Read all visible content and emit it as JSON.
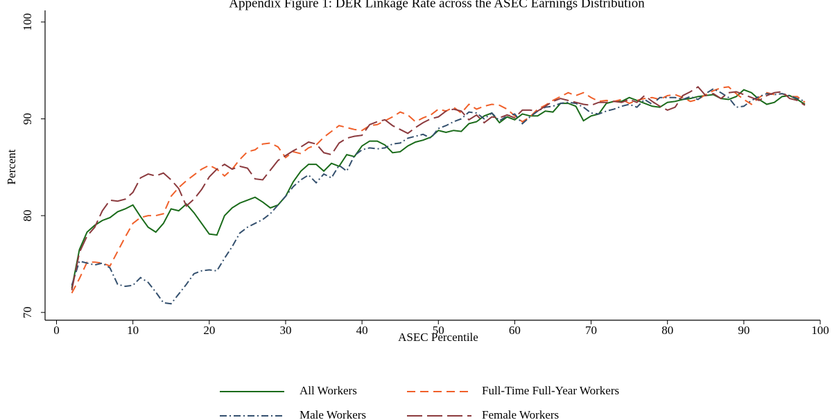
{
  "chart_data": {
    "type": "line",
    "title": "Appendix Figure 1: DER Linkage Rate across the ASEC Earnings Distribution",
    "x_label": "ASEC Percentile",
    "y_label": "Percent",
    "xlim": [
      -1.5,
      100
    ],
    "xticks": [
      0,
      10,
      20,
      30,
      40,
      50,
      60,
      70,
      80,
      90,
      100
    ],
    "ylim": [
      69.2,
      101.2
    ],
    "yticks": [
      70,
      80,
      90,
      100
    ],
    "legend": "bottom",
    "x": [
      2,
      3,
      4,
      5,
      6,
      7,
      8,
      9,
      10,
      11,
      12,
      13,
      14,
      15,
      16,
      17,
      18,
      19,
      20,
      21,
      22,
      23,
      24,
      25,
      26,
      27,
      28,
      29,
      30,
      31,
      32,
      33,
      34,
      35,
      36,
      37,
      38,
      39,
      40,
      41,
      42,
      43,
      44,
      45,
      46,
      47,
      48,
      49,
      50,
      51,
      52,
      53,
      54,
      55,
      56,
      57,
      58,
      59,
      60,
      61,
      62,
      63,
      64,
      65,
      66,
      67,
      68,
      69,
      70,
      71,
      72,
      73,
      74,
      75,
      76,
      77,
      78,
      79,
      80,
      81,
      82,
      83,
      84,
      85,
      86,
      87,
      88,
      89,
      90,
      91,
      92,
      93,
      94,
      95,
      96,
      97,
      98
    ],
    "series": [
      {
        "name": "All Workers",
        "color": "#1a6b1a",
        "dash": "none",
        "values": [
          72.5,
          76.5,
          78.3,
          79,
          79.5,
          79.8,
          80.4,
          80.7,
          81.1,
          79.9,
          78.8,
          78.3,
          79.2,
          80.7,
          80.5,
          81.2,
          80.3,
          79.2,
          78.1,
          78,
          80,
          80.8,
          81.3,
          81.6,
          81.9,
          81.4,
          80.8,
          81.1,
          82,
          83.5,
          84.6,
          85.3,
          85.3,
          84.6,
          85.4,
          85.1,
          86.3,
          86.1,
          87.2,
          87.7,
          87.7,
          87.3,
          86.5,
          86.6,
          87.2,
          87.6,
          87.8,
          88.1,
          88.8,
          88.6,
          88.8,
          88.7,
          89.5,
          89.7,
          90.3,
          90.6,
          89.6,
          90.2,
          89.9,
          90.5,
          90.3,
          90.3,
          90.8,
          90.7,
          91.6,
          91.6,
          91.3,
          89.8,
          90.3,
          90.5,
          91.6,
          91.8,
          91.8,
          92.2,
          91.9,
          91.6,
          91.3,
          91.2,
          91.7,
          91.8,
          92,
          92.1,
          92.3,
          92.4,
          92.5,
          92.1,
          92,
          92.3,
          93,
          92.7,
          92,
          91.5,
          91.7,
          92.3,
          92.4,
          92,
          91.5
        ]
      },
      {
        "name": "Full-Time Full-Year Workers",
        "color": "#f0602a",
        "dash": "12 7",
        "values": [
          72,
          73.5,
          75.2,
          75.2,
          75.1,
          74.8,
          76.3,
          77.8,
          79.2,
          79.8,
          80,
          80,
          80.2,
          82,
          82.9,
          83.6,
          84.2,
          84.8,
          85.2,
          84.8,
          84.1,
          84.8,
          85.8,
          86.6,
          86.8,
          87.4,
          87.5,
          87.1,
          86,
          86.6,
          86.4,
          87,
          87.3,
          88.1,
          88.7,
          89.3,
          89.1,
          88.9,
          88.8,
          89.3,
          89.4,
          89.8,
          90.2,
          90.7,
          90.4,
          89.7,
          90.1,
          90.4,
          91,
          90.8,
          91.2,
          90.6,
          91.5,
          91,
          91.3,
          91.5,
          91.4,
          91,
          90.3,
          89.7,
          90.2,
          91,
          91.4,
          91.9,
          92.3,
          92.7,
          92.4,
          92.7,
          92.2,
          91.8,
          91.9,
          91.8,
          92,
          91.6,
          91.9,
          92.1,
          92.2,
          92,
          92.4,
          92.5,
          92.2,
          91.8,
          92,
          92.5,
          92.9,
          93.2,
          93.3,
          92.6,
          92,
          91.5,
          92.2,
          92.7,
          92.5,
          92.6,
          92.3,
          92.3,
          91.7
        ]
      },
      {
        "name": "Male Workers",
        "color": "#34506e",
        "dash": "10 4 2 4",
        "values": [
          72.8,
          75.3,
          75.1,
          74.9,
          75.1,
          74.6,
          72.9,
          72.7,
          72.8,
          73.6,
          73.1,
          72.1,
          71,
          70.9,
          71.9,
          72.9,
          74,
          74.3,
          74.4,
          74.3,
          75.6,
          76.8,
          78.2,
          78.8,
          79.2,
          79.6,
          80.2,
          81.1,
          82,
          83,
          83.7,
          84.2,
          83.4,
          84.3,
          83.9,
          85.2,
          84.6,
          86.2,
          86.8,
          87,
          86.9,
          87,
          87.4,
          87.5,
          88,
          88.2,
          88.4,
          88,
          89,
          89.3,
          89.7,
          90,
          90.7,
          90.6,
          90,
          90.6,
          89.8,
          90.3,
          90.5,
          89.5,
          90.2,
          90.8,
          91.2,
          91.3,
          91.6,
          91.7,
          91.6,
          91.2,
          90.6,
          90.5,
          90.8,
          91,
          91.3,
          91.5,
          91.2,
          92,
          91.5,
          92.2,
          92.2,
          92.2,
          92,
          92.3,
          92,
          92.6,
          93.1,
          92.7,
          92.2,
          91.2,
          91.3,
          91.9,
          92.3,
          92.6,
          92.5,
          92.6,
          92.4,
          92.1,
          91.8
        ]
      },
      {
        "name": "Female Workers",
        "color": "#8b3a3e",
        "dash": "22 7",
        "values": [
          72.3,
          76.2,
          77.9,
          78.8,
          80.5,
          81.6,
          81.5,
          81.7,
          82.4,
          83.9,
          84.3,
          84.1,
          84.4,
          83.7,
          82.8,
          81,
          81.7,
          82.7,
          84,
          84.8,
          85.3,
          84.8,
          85.1,
          84.9,
          83.8,
          83.7,
          84.7,
          85.7,
          86.2,
          86.7,
          87.1,
          87.6,
          87.4,
          86.5,
          86.3,
          87.5,
          88,
          88.2,
          88.3,
          89.4,
          89.7,
          89.9,
          89.3,
          88.9,
          88.5,
          89.1,
          89.6,
          90,
          90.2,
          90.8,
          91,
          90.8,
          89.9,
          90.4,
          89.6,
          90.2,
          90.1,
          90.4,
          90.1,
          90.9,
          90.9,
          90.8,
          91.3,
          91.8,
          92.1,
          91.9,
          91.7,
          91.5,
          91.4,
          91.7,
          91.7,
          91.8,
          91.7,
          92,
          91.7,
          92.4,
          91.8,
          91.3,
          90.9,
          91.2,
          92.4,
          92.8,
          93.3,
          92.4,
          92.6,
          92.1,
          92.7,
          92.8,
          92.5,
          92.2,
          91.9,
          92.4,
          92.7,
          92.8,
          92.1,
          91.9,
          91.4
        ]
      }
    ]
  }
}
